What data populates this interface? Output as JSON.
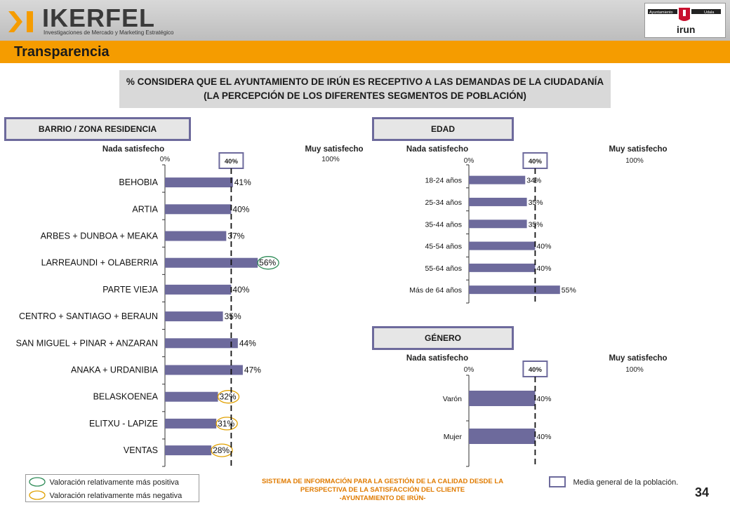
{
  "header": {
    "brand_name": "IKERFEL",
    "brand_subtitle": "Investigaciones de Mercado y Marketing Estratégico",
    "logo_right_words": [
      "Ayuntamiento",
      "Udala",
      "irun"
    ],
    "page_title": "Transparencia"
  },
  "question": "% CONSIDERA QUE EL AYUNTAMIENTO DE IRÚN ES RECEPTIVO A LAS DEMANDAS DE LA CIUDADANÍA (LA PERCEPCIÓN DE LOS DIFERENTES SEGMENTOS DE POBLACIÓN)",
  "colors": {
    "bar": "#6d6a9c",
    "orange": "#f59c00",
    "positive_circle": "#2e8b57",
    "negative_circle": "#e0a000",
    "footer_text": "#e07b00"
  },
  "chart_data": [
    {
      "type": "bar",
      "orientation": "horizontal",
      "title": "BARRIO / ZONA RESIDENCIA",
      "scale_left_label": "Nada satisfecho",
      "scale_right_label": "Muy satisfecho",
      "tick_min_label": "0%",
      "tick_max_label": "100%",
      "reference_label": "40%",
      "reference_value": 40,
      "xlim": [
        0,
        100
      ],
      "categories": [
        "BEHOBIA",
        "ARTIA",
        "ARBES + DUNBOA + MEAKA",
        "LARREAUNDI + OLABERRIA",
        "PARTE VIEJA",
        "CENTRO + SANTIAGO + BERAUN",
        "SAN MIGUEL + PINAR + ANZARAN",
        "ANAKA + URDANIBIA",
        "BELASKOENEA",
        "ELITXU - LAPIZE",
        "VENTAS"
      ],
      "values": [
        41,
        40,
        37,
        56,
        40,
        35,
        44,
        47,
        32,
        31,
        28
      ],
      "labels": [
        "41%",
        "40%",
        "37%",
        "56%",
        "40%",
        "35%",
        "44%",
        "47%",
        "32%",
        "31%",
        "28%"
      ],
      "highlights": [
        "",
        "",
        "",
        "positive",
        "",
        "",
        "",
        "",
        "negative",
        "negative",
        "negative"
      ]
    },
    {
      "type": "bar",
      "orientation": "horizontal",
      "title": "EDAD",
      "scale_left_label": "Nada satisfecho",
      "scale_right_label": "Muy satisfecho",
      "tick_min_label": "0%",
      "tick_max_label": "100%",
      "reference_label": "40%",
      "reference_value": 40,
      "xlim": [
        0,
        100
      ],
      "categories": [
        "18-24 años",
        "25-34 años",
        "35-44 años",
        "45-54 años",
        "55-64 años",
        "Más de 64 años"
      ],
      "values": [
        34,
        35,
        35,
        40,
        40,
        55
      ],
      "labels": [
        "34%",
        "35%",
        "35%",
        "40%",
        "40%",
        "55%"
      ],
      "highlights": [
        "",
        "",
        "",
        "",
        "",
        ""
      ]
    },
    {
      "type": "bar",
      "orientation": "horizontal",
      "title": "GÉNERO",
      "scale_left_label": "Nada satisfecho",
      "scale_right_label": "Muy satisfecho",
      "tick_min_label": "0%",
      "tick_max_label": "100%",
      "reference_label": "40%",
      "reference_value": 40,
      "xlim": [
        0,
        100
      ],
      "categories": [
        "Varón",
        "Mujer"
      ],
      "values": [
        40,
        40
      ],
      "labels": [
        "40%",
        "40%"
      ],
      "highlights": [
        "",
        ""
      ]
    }
  ],
  "legend": {
    "positive": "Valoración relativamente más positiva",
    "negative": "Valoración relativamente más negativa",
    "mean": "Media general de la población."
  },
  "footer": {
    "line1": "SISTEMA DE INFORMACIÓN PARA LA GESTIÓN DE LA CALIDAD DESDE LA",
    "line2": "PERSPECTIVA DE LA SATISFACCIÓN DEL CLIENTE",
    "line3": "-AYUNTAMIENTO DE IRÚN-"
  },
  "page_number": "34"
}
